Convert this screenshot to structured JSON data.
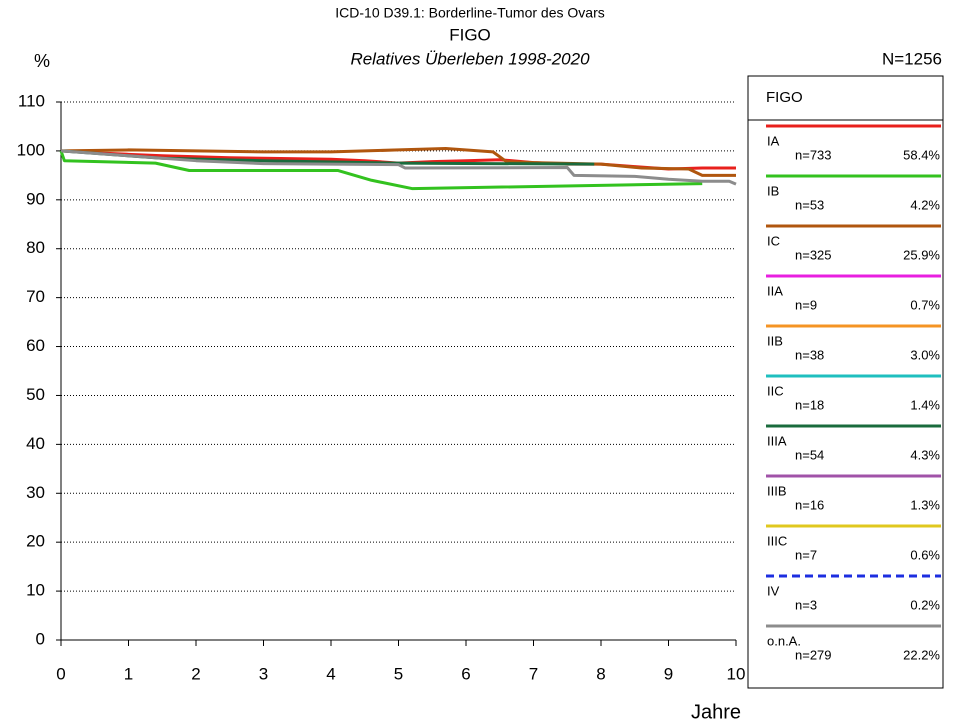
{
  "chart_data": {
    "type": "line",
    "title": "ICD-10 D39.1: Borderline-Tumor des Ovars",
    "subtitle": "FIGO",
    "subtitle2": "Relatives Überleben 1998-2020",
    "total_label": "N=1256",
    "y_label": "%",
    "x_label": "Jahre",
    "legend_title": "FIGO",
    "xlim": [
      0,
      10
    ],
    "xticks": [
      0,
      1,
      2,
      3,
      4,
      5,
      6,
      7,
      8,
      9,
      10
    ],
    "ylim": [
      0,
      110
    ],
    "yticks": [
      0,
      10,
      20,
      30,
      40,
      50,
      60,
      70,
      80,
      90,
      100,
      110
    ],
    "grid": true,
    "emphasized_yticks": [
      50,
      100
    ],
    "series": [
      {
        "name": "IA",
        "color": "#e8201c",
        "n_label": "n=733",
        "share_label": "58.4%",
        "x": [
          0,
          0.5,
          1,
          1.5,
          2,
          2.5,
          3,
          3.5,
          4,
          4.5,
          5,
          5.5,
          6,
          6.5,
          7,
          7.5,
          8,
          8.5,
          9,
          9.5,
          10
        ],
        "values": [
          100,
          99.6,
          99.3,
          99,
          98.8,
          98.6,
          98.5,
          98.4,
          98.3,
          98,
          97.5,
          97.8,
          98,
          98.2,
          97.6,
          97.3,
          97.3,
          96.8,
          96.3,
          96.5,
          96.5
        ]
      },
      {
        "name": "IB",
        "color": "#33c21f",
        "n_label": "n=53",
        "share_label": "4.2%",
        "x": [
          0,
          0.05,
          1.4,
          1.9,
          4.1,
          4.6,
          5.2,
          9.5
        ],
        "values": [
          100,
          98,
          97.5,
          96,
          96,
          94,
          92.3,
          93.3
        ]
      },
      {
        "name": "IC",
        "color": "#b0560e",
        "n_label": "n=325",
        "share_label": "25.9%",
        "x": [
          0,
          1,
          2,
          3,
          4,
          5,
          5.7,
          6.4,
          6.6,
          7,
          8,
          8.6,
          9.3,
          9.5,
          10
        ],
        "values": [
          100,
          100.2,
          100,
          99.8,
          99.8,
          100.2,
          100.5,
          99.8,
          97.8,
          97.6,
          97.3,
          96.5,
          96.3,
          95,
          95
        ]
      },
      {
        "name": "IIA",
        "color": "#e81fe0",
        "n_label": "n=9",
        "share_label": "0.7%"
      },
      {
        "name": "IIB",
        "color": "#f59424",
        "n_label": "n=38",
        "share_label": "3.0%"
      },
      {
        "name": "IIC",
        "color": "#1fbfbf",
        "n_label": "n=18",
        "share_label": "1.4%"
      },
      {
        "name": "IIIA",
        "color": "#1a6b3c",
        "n_label": "n=54",
        "share_label": "4.3%",
        "x": [
          0,
          1.5,
          3,
          5,
          7.9
        ],
        "values": [
          100,
          98.5,
          98,
          97.5,
          97.3
        ]
      },
      {
        "name": "IIIB",
        "color": "#a052a8",
        "n_label": "n=16",
        "share_label": "1.3%"
      },
      {
        "name": "IIIC",
        "color": "#e0c81f",
        "n_label": "n=7",
        "share_label": "0.6%"
      },
      {
        "name": "IV",
        "color": "#1c2ee0",
        "dash": true,
        "n_label": "n=3",
        "share_label": "0.2%"
      },
      {
        "name": "o.n.A.",
        "color": "#8c8c8c",
        "n_label": "n=279",
        "share_label": "22.2%",
        "x": [
          0,
          1,
          2,
          3,
          5,
          5.1,
          7.5,
          7.6,
          8.5,
          9,
          9.5,
          9.9,
          10
        ],
        "values": [
          100,
          99,
          98,
          97.4,
          97.2,
          96.5,
          96.6,
          95,
          94.8,
          94.2,
          93.8,
          93.8,
          93.2
        ]
      }
    ]
  }
}
